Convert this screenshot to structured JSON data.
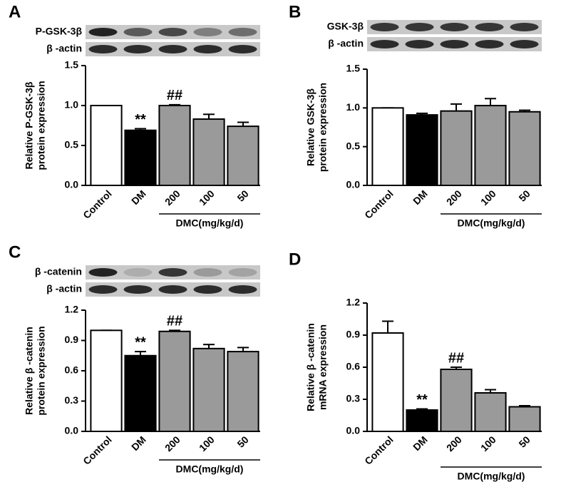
{
  "chart_data": [
    {
      "type": "bar",
      "panel": "A",
      "blot_labels": [
        "P-GSK-3β",
        "β -actin"
      ],
      "ylabel": [
        "Relative P-GSK-3β",
        "protein expression"
      ],
      "categories": [
        "Control",
        "DM",
        "200",
        "100",
        "50"
      ],
      "group_label": "DMC(mg/kg/d)",
      "values": [
        1.0,
        0.69,
        1.0,
        0.83,
        0.74
      ],
      "errors": [
        0,
        0.02,
        0.01,
        0.06,
        0.05
      ],
      "colors": [
        "#ffffff",
        "#000000",
        "#9a9a9a",
        "#9a9a9a",
        "#9a9a9a"
      ],
      "annotations": [
        null,
        "**",
        "##",
        null,
        null
      ],
      "ylim": [
        0,
        1.5
      ],
      "yticks": [
        {
          "value": 0,
          "label": "0.0"
        },
        0.5,
        {
          "value": 1,
          "label": "1.0"
        },
        1.5
      ]
    },
    {
      "type": "bar",
      "panel": "B",
      "blot_labels": [
        "GSK-3β",
        "β -actin"
      ],
      "ylabel": [
        "Relative GSK-3β",
        "protein expression"
      ],
      "categories": [
        "Control",
        "DM",
        "200",
        "100",
        "50"
      ],
      "group_label": "DMC(mg/kg/d)",
      "values": [
        1.0,
        0.91,
        0.96,
        1.03,
        0.95
      ],
      "errors": [
        0,
        0.02,
        0.09,
        0.09,
        0.02
      ],
      "colors": [
        "#ffffff",
        "#000000",
        "#9a9a9a",
        "#9a9a9a",
        "#9a9a9a"
      ],
      "annotations": [
        null,
        null,
        null,
        null,
        null
      ],
      "ylim": [
        0,
        1.5
      ],
      "yticks": [
        {
          "value": 0,
          "label": "0.0"
        },
        0.5,
        {
          "value": 1,
          "label": "1.0"
        },
        1.5
      ]
    },
    {
      "type": "bar",
      "panel": "C",
      "blot_labels": [
        "β -catenin",
        "β -actin"
      ],
      "ylabel": [
        "Relative β -catenin",
        "protein expression"
      ],
      "categories": [
        "Control",
        "DM",
        "200",
        "100",
        "50"
      ],
      "group_label": "DMC(mg/kg/d)",
      "values": [
        1.0,
        0.75,
        0.99,
        0.82,
        0.79
      ],
      "errors": [
        0,
        0.04,
        0.01,
        0.04,
        0.04
      ],
      "colors": [
        "#ffffff",
        "#000000",
        "#9a9a9a",
        "#9a9a9a",
        "#9a9a9a"
      ],
      "annotations": [
        null,
        "**",
        "##",
        null,
        null
      ],
      "ylim": [
        0,
        1.2
      ],
      "yticks": [
        {
          "value": 0,
          "label": "0.0"
        },
        0.3,
        0.6,
        0.9,
        1.2
      ]
    },
    {
      "type": "bar",
      "panel": "D",
      "blot_labels": [],
      "ylabel": [
        "Relative β -catenin",
        "mRNA expression"
      ],
      "categories": [
        "Control",
        "DM",
        "200",
        "100",
        "50"
      ],
      "group_label": "DMC(mg/kg/d)",
      "values": [
        0.92,
        0.2,
        0.58,
        0.36,
        0.23
      ],
      "errors": [
        0.11,
        0.01,
        0.02,
        0.03,
        0.01
      ],
      "colors": [
        "#ffffff",
        "#000000",
        "#9a9a9a",
        "#9a9a9a",
        "#9a9a9a"
      ],
      "annotations": [
        null,
        "**",
        "##",
        null,
        null
      ],
      "ylim": [
        0,
        1.2
      ],
      "yticks": [
        {
          "value": 0,
          "label": "0.0"
        },
        0.3,
        0.6,
        0.9,
        1.2
      ]
    }
  ]
}
